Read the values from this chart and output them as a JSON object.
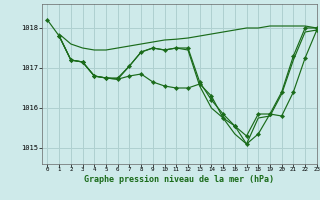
{
  "title": "Graphe pression niveau de la mer (hPa)",
  "bg_color": "#ceeaea",
  "grid_color": "#b8d8d8",
  "line_color": "#1a6b1a",
  "xlim": [
    -0.5,
    23
  ],
  "ylim": [
    1014.6,
    1018.6
  ],
  "yticks": [
    1015,
    1016,
    1017,
    1018
  ],
  "xticks": [
    0,
    1,
    2,
    3,
    4,
    5,
    6,
    7,
    8,
    9,
    10,
    11,
    12,
    13,
    14,
    15,
    16,
    17,
    18,
    19,
    20,
    21,
    22,
    23
  ],
  "series": [
    {
      "x": [
        1,
        2,
        3,
        4,
        5,
        6,
        7,
        8,
        9,
        10,
        11,
        12,
        13,
        14,
        15,
        16,
        17,
        18,
        19,
        20,
        21,
        22,
        23
      ],
      "y": [
        1017.85,
        1017.6,
        1017.5,
        1017.45,
        1017.45,
        1017.5,
        1017.55,
        1017.6,
        1017.65,
        1017.7,
        1017.72,
        1017.75,
        1017.8,
        1017.85,
        1017.9,
        1017.95,
        1018.0,
        1018.0,
        1018.05,
        1018.05,
        1018.05,
        1018.05,
        1018.0
      ],
      "has_markers": false
    },
    {
      "x": [
        0,
        1,
        2,
        3,
        4,
        5,
        6,
        7,
        8,
        9,
        10,
        11,
        12,
        13,
        14,
        15,
        16,
        17,
        18,
        19,
        20,
        21,
        22,
        23
      ],
      "y": [
        1018.2,
        1017.8,
        1017.2,
        1017.15,
        1016.8,
        1016.75,
        1016.75,
        1017.05,
        1017.4,
        1017.5,
        1017.45,
        1017.5,
        1017.5,
        1016.65,
        1016.2,
        1015.85,
        1015.55,
        1015.3,
        1015.85,
        1015.85,
        1016.4,
        1017.3,
        1018.0,
        1018.0
      ],
      "has_markers": true
    },
    {
      "x": [
        1,
        2,
        3,
        4,
        5,
        6,
        7,
        8,
        9,
        10,
        11,
        12,
        13,
        14,
        15,
        16,
        17,
        18,
        19,
        20,
        21,
        22,
        23
      ],
      "y": [
        1017.8,
        1017.2,
        1017.15,
        1016.8,
        1016.75,
        1016.72,
        1017.05,
        1017.4,
        1017.5,
        1017.45,
        1017.5,
        1017.45,
        1016.55,
        1016.0,
        1015.75,
        1015.35,
        1015.1,
        1015.75,
        1015.8,
        1016.35,
        1017.2,
        1017.9,
        1017.95
      ],
      "has_markers": false
    },
    {
      "x": [
        1,
        2,
        3,
        4,
        5,
        6,
        7,
        8,
        9,
        10,
        11,
        12,
        13,
        14,
        15,
        16,
        17,
        18,
        19,
        20,
        21,
        22,
        23
      ],
      "y": [
        1017.8,
        1017.2,
        1017.15,
        1016.8,
        1016.75,
        1016.72,
        1016.8,
        1016.85,
        1016.65,
        1016.55,
        1016.5,
        1016.5,
        1016.6,
        1016.3,
        1015.75,
        1015.55,
        1015.1,
        1015.35,
        1015.85,
        1015.8,
        1016.4,
        1017.25,
        1017.95
      ],
      "has_markers": true
    }
  ]
}
